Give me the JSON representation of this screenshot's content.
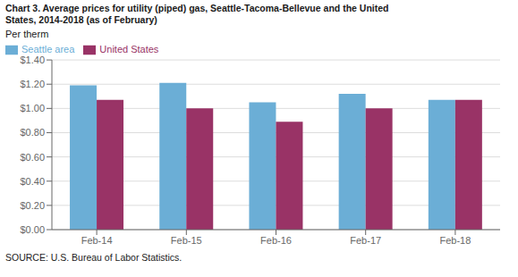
{
  "chart_data": {
    "type": "bar",
    "title": [
      "Chart 3. Average prices for utility (piped) gas, Seattle-Tacoma-Bellevue and the United",
      "States, 2014-2018  (as of February)"
    ],
    "ylabel": "Per therm",
    "annotations": [
      "SOURCE: U.S. Bureau of Labor Statistics."
    ],
    "categories": [
      "Feb-14",
      "Feb-15",
      "Feb-16",
      "Feb-17",
      "Feb-18"
    ],
    "series": [
      {
        "name": "Seattle area",
        "color": "#6baed6",
        "values": [
          1.19,
          1.21,
          1.05,
          1.12,
          1.07
        ]
      },
      {
        "name": "United States",
        "color": "#993366",
        "values": [
          1.07,
          1.0,
          0.89,
          1.0,
          1.07
        ]
      }
    ],
    "ylim": [
      0,
      1.4
    ],
    "yticks": [
      {
        "value": 0.0,
        "label": "$0.00"
      },
      {
        "value": 0.2,
        "label": "$0.20"
      },
      {
        "value": 0.4,
        "label": "$0.40"
      },
      {
        "value": 0.6,
        "label": "$0.60"
      },
      {
        "value": 0.8,
        "label": "$0.80"
      },
      {
        "value": 1.0,
        "label": "$1.00"
      },
      {
        "value": 1.2,
        "label": "$1.20"
      },
      {
        "value": 1.4,
        "label": "$1.40"
      }
    ],
    "grid": true,
    "legend": "upper left"
  }
}
